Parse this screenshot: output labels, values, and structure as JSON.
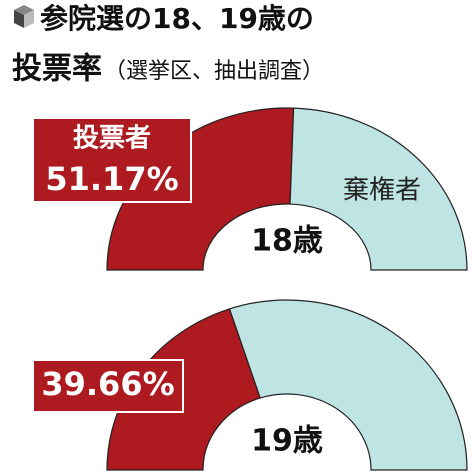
{
  "header": {
    "title": "参院選の18、19歳の",
    "subtitle": "投票率",
    "note": "（選挙区、抽出調査）"
  },
  "chart_data": [
    {
      "type": "half-donut",
      "label": "18歳",
      "categories": [
        "投票者",
        "棄権者"
      ],
      "values": [
        51.17,
        48.83
      ],
      "value_labels": [
        "51.17%",
        null
      ],
      "colors": [
        "#ad1a1f",
        "#bfe4e4"
      ]
    },
    {
      "type": "half-donut",
      "label": "19歳",
      "categories": [
        null,
        null
      ],
      "values": [
        39.66,
        60.34
      ],
      "value_labels": [
        "39.66%",
        null
      ],
      "colors": [
        "#ad1a1f",
        "#bfe4e4"
      ]
    }
  ]
}
